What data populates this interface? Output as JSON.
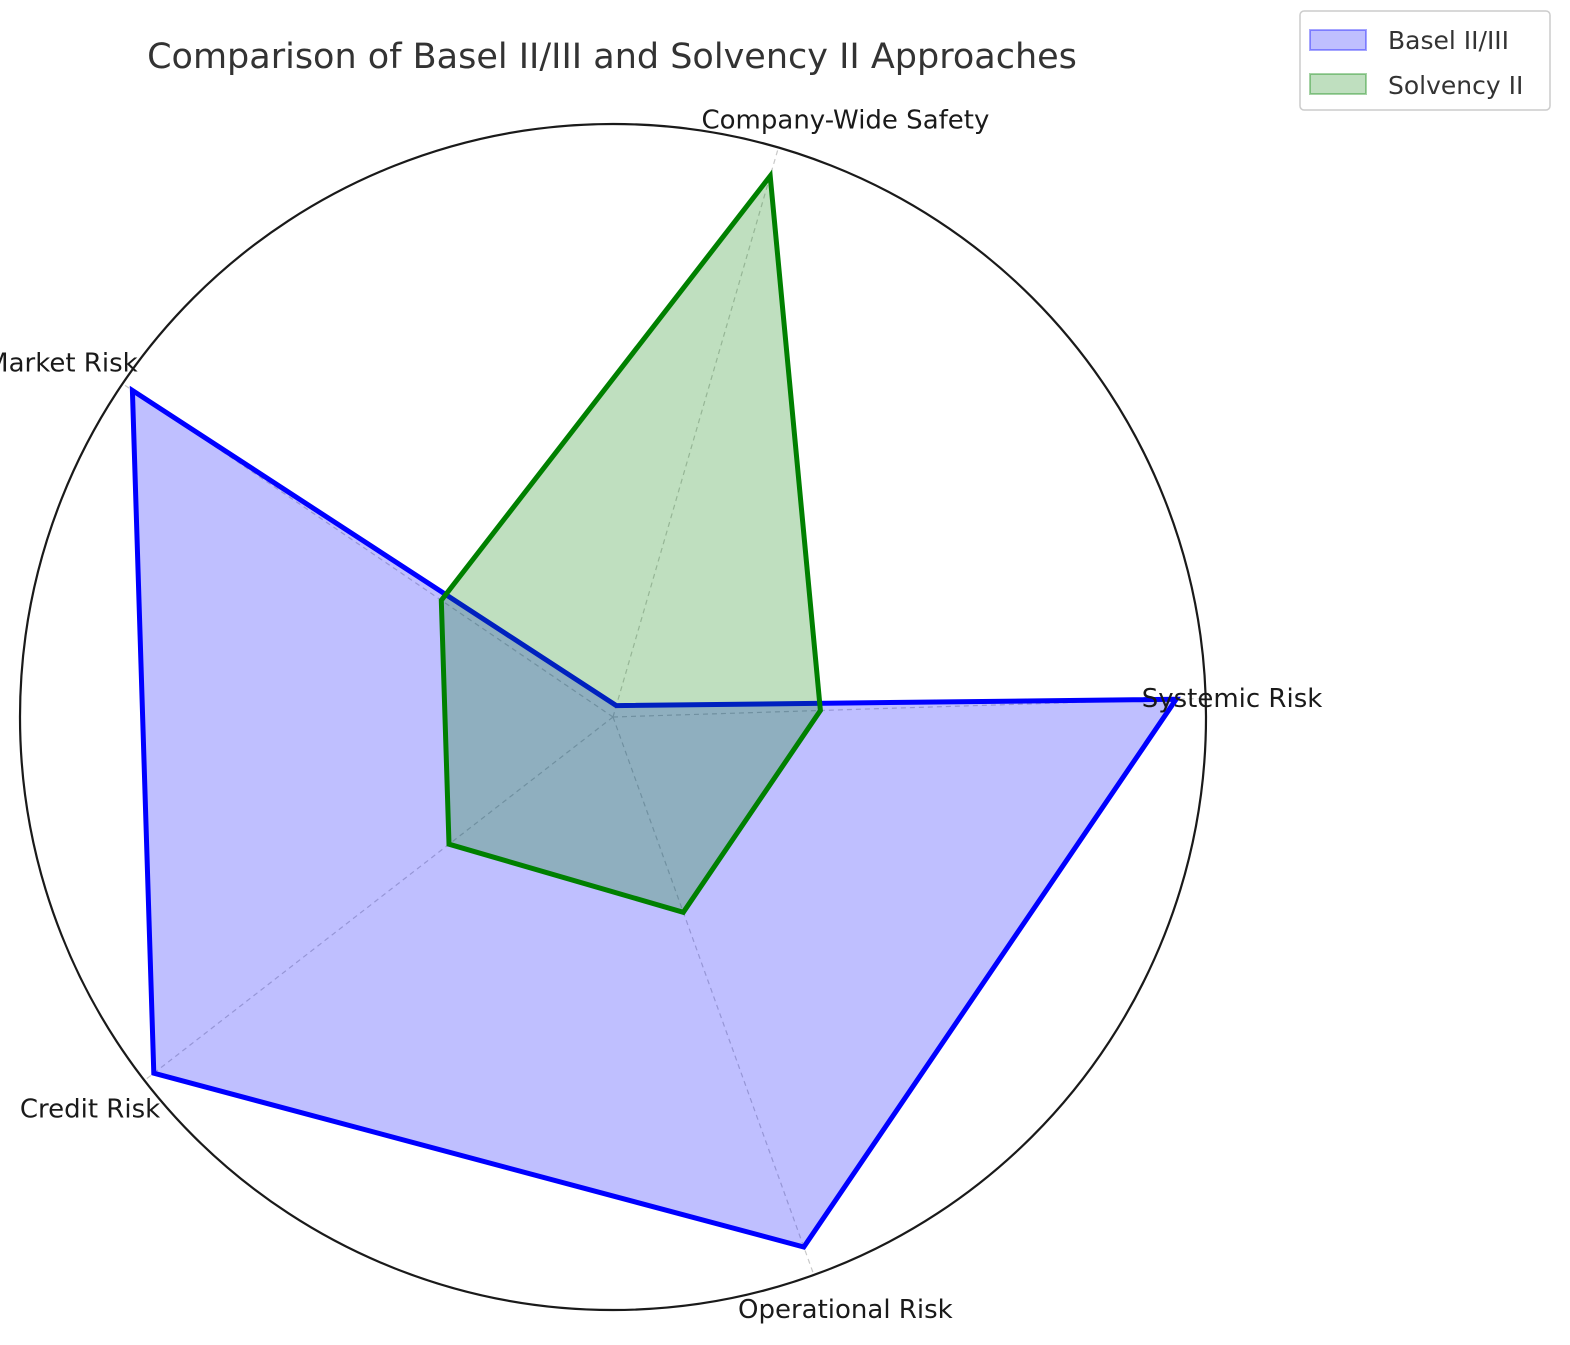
{
  "chart_data": {
    "type": "radar",
    "title": "Comparison of Basel II/III and Solvency II Approaches",
    "categories": [
      "Systemic Risk",
      "Company-Wide Safety",
      "Market Risk",
      "Credit Risk",
      "Operational Risk"
    ],
    "rlim": [
      0,
      1
    ],
    "series": [
      {
        "name": "Basel II/III",
        "values": [
          0.95,
          0.02,
          0.98,
          0.98,
          0.95
        ],
        "color": "#0000ff",
        "fill": "#0000ff",
        "fill_opacity": 0.25
      },
      {
        "name": "Solvency II",
        "values": [
          0.35,
          0.95,
          0.35,
          0.35,
          0.35
        ],
        "color": "#008000",
        "fill": "#008000",
        "fill_opacity": 0.25
      }
    ],
    "grid": true,
    "legend_position": "top-right"
  }
}
